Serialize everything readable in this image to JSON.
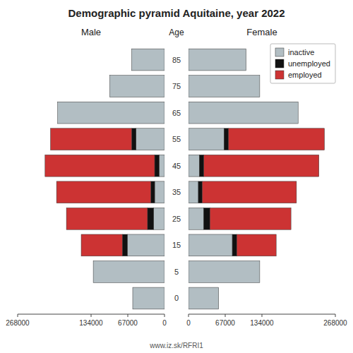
{
  "chart_data": [
    {
      "type": "bar",
      "orientation": "horizontal",
      "stacked": true,
      "title": "Demographic pyramid Aquitaine, year 2022",
      "subtitle": "Male",
      "annotations": [
        "www.iz.sk/RFRI1"
      ],
      "categories": [
        0,
        5,
        15,
        25,
        35,
        45,
        55,
        65,
        75,
        85
      ],
      "series": [
        {
          "name": "inactive",
          "color": "#b2bec3",
          "values": [
            58000,
            130000,
            68000,
            20000,
            18000,
            10000,
            52000,
            195000,
            100000,
            60000
          ]
        },
        {
          "name": "unemployed",
          "color": "#111111",
          "values": [
            0,
            0,
            9000,
            11000,
            7000,
            8000,
            8000,
            0,
            0,
            0
          ]
        },
        {
          "name": "employed",
          "color": "#cc3333",
          "values": [
            0,
            0,
            75000,
            148000,
            172000,
            200000,
            148000,
            0,
            0,
            0
          ]
        }
      ],
      "xlim": [
        268000,
        0
      ],
      "xticks": [
        268000,
        134000,
        67000,
        0
      ],
      "tick_labels": "x",
      "grid": false
    },
    {
      "type": "bar",
      "orientation": "horizontal",
      "stacked": true,
      "subtitle": "Female",
      "ylabel": "Age",
      "categories": [
        0,
        5,
        15,
        25,
        35,
        45,
        55,
        65,
        75,
        85
      ],
      "series": [
        {
          "name": "inactive",
          "color": "#b2bec3",
          "values": [
            55000,
            130000,
            80000,
            28000,
            18000,
            20000,
            65000,
            200000,
            130000,
            105000
          ]
        },
        {
          "name": "unemployed",
          "color": "#111111",
          "values": [
            0,
            0,
            8000,
            11000,
            7000,
            8000,
            8000,
            0,
            0,
            0
          ]
        },
        {
          "name": "employed",
          "color": "#cc3333",
          "values": [
            0,
            0,
            72000,
            148000,
            172000,
            210000,
            175000,
            0,
            0,
            0
          ]
        }
      ],
      "xlim": [
        0,
        268000
      ],
      "xticks": [
        0,
        67000,
        134000,
        268000
      ],
      "legend": "upper right",
      "grid": false
    }
  ]
}
